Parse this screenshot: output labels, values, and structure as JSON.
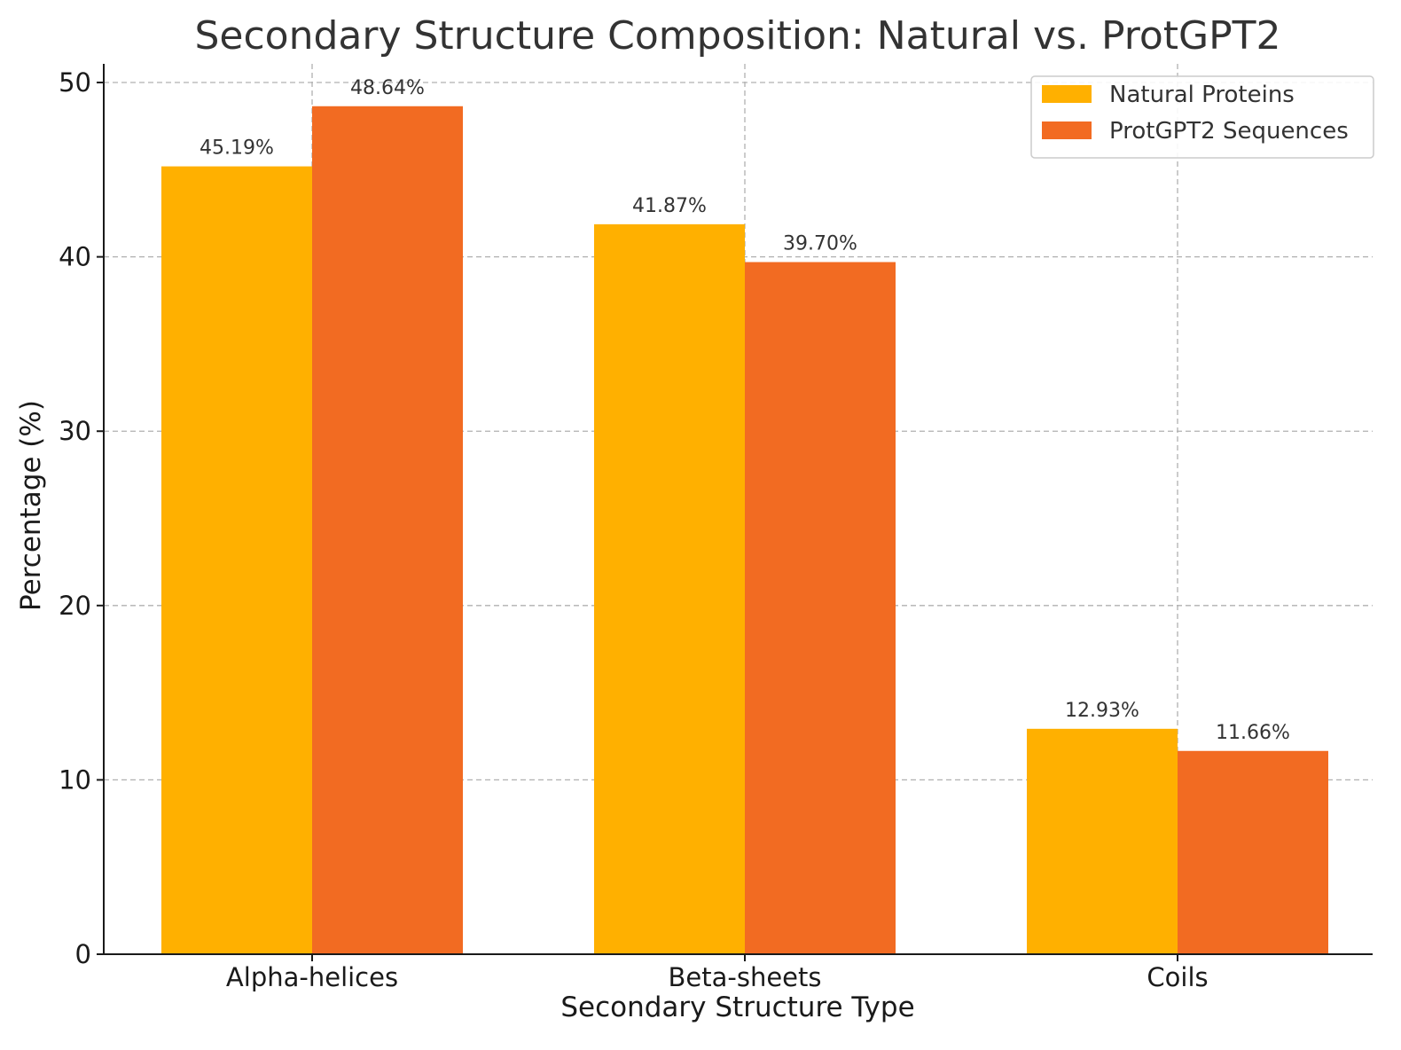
{
  "chart_data": {
    "type": "bar",
    "title": "Secondary Structure Composition: Natural vs. ProtGPT2",
    "xlabel": "Secondary Structure Type",
    "ylabel": "Percentage (%)",
    "categories": [
      "Alpha-helices",
      "Beta-sheets",
      "Coils"
    ],
    "series": [
      {
        "name": "Natural Proteins",
        "color": "#FFB000",
        "values": [
          45.19,
          41.87,
          12.93
        ],
        "labels": [
          "45.19%",
          "41.87%",
          "12.93%"
        ]
      },
      {
        "name": "ProtGPT2 Sequences",
        "color": "#F26B22",
        "values": [
          48.64,
          39.7,
          11.66
        ],
        "labels": [
          "48.64%",
          "39.70%",
          "11.66%"
        ]
      }
    ],
    "ylim": [
      0,
      51.07
    ],
    "yticks": [
      0,
      10,
      20,
      30,
      40,
      50
    ],
    "ytick_labels": [
      "0",
      "10",
      "20",
      "30",
      "40",
      "50"
    ],
    "grid": true,
    "legend_position": "top-right"
  }
}
